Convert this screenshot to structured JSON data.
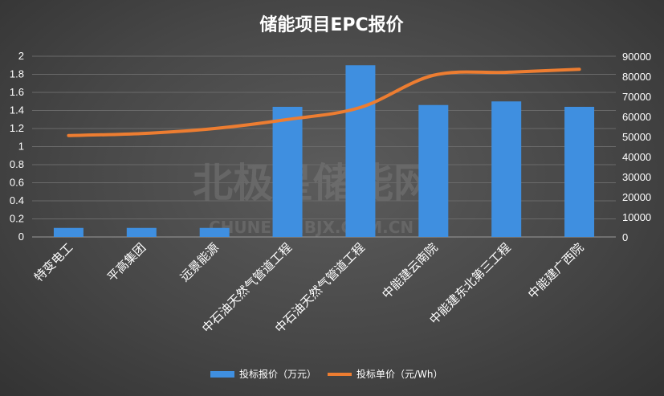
{
  "chart_data": {
    "type": "bar",
    "title": "储能项目EPC报价",
    "categories": [
      "特变电工",
      "平高集团",
      "远景能源",
      "中石油天然气管道工程",
      "中石油天然气管道工程",
      "中能建云南院",
      "中能建东北第三工程",
      "中能建广西院"
    ],
    "series": [
      {
        "name": "投标报价（万元）",
        "type": "bar",
        "axis": "left",
        "color": "#3f8fe0",
        "values": [
          0.1,
          0.1,
          0.1,
          1.44,
          1.9,
          1.46,
          1.5,
          1.44
        ]
      },
      {
        "name": "投标单价（元/Wh）",
        "type": "line",
        "axis": "right",
        "color": "#ed7d31",
        "values": [
          50500,
          51500,
          54000,
          58500,
          64500,
          80500,
          82000,
          83500
        ]
      }
    ],
    "ylim_left": [
      0,
      2
    ],
    "yticks_left": [
      "0",
      "0.2",
      "0.4",
      "0.6",
      "0.8",
      "1",
      "1.2",
      "1.4",
      "1.6",
      "1.8",
      "2"
    ],
    "ylim_right": [
      0,
      90000
    ],
    "yticks_right": [
      "0",
      "10000",
      "20000",
      "30000",
      "40000",
      "50000",
      "60000",
      "70000",
      "80000",
      "90000"
    ],
    "grid": true,
    "legend_position": "bottom-center"
  },
  "watermark": {
    "main": "北极星储能网",
    "sub": "CHUNENG.BJX.COM.CN"
  }
}
